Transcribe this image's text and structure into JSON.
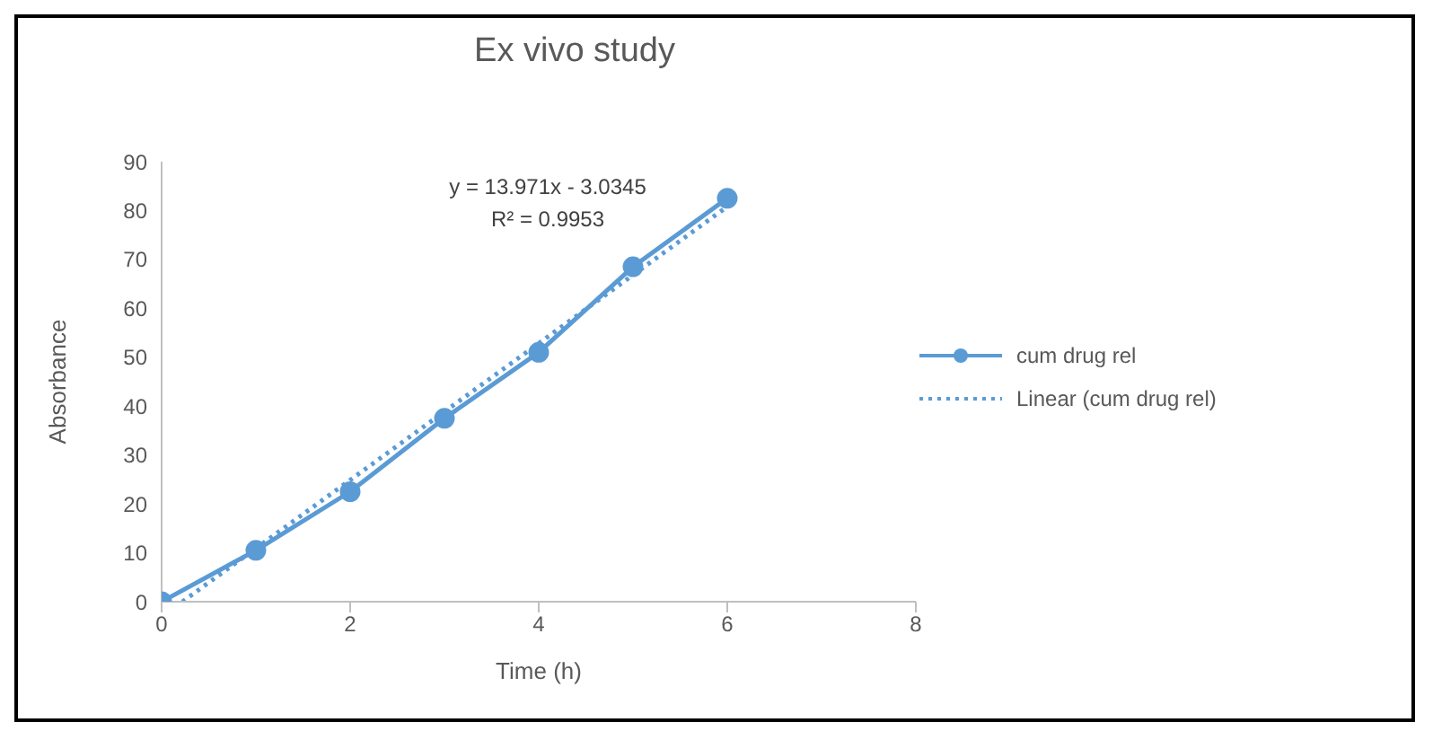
{
  "chart_data": {
    "type": "line",
    "title": "Ex vivo study",
    "xlabel": "Time (h)",
    "ylabel": "Absorbance",
    "xlim": [
      0,
      8
    ],
    "xticks": [
      0,
      2,
      4,
      6,
      8
    ],
    "ylim": [
      0,
      90
    ],
    "yticks": [
      0,
      10,
      20,
      30,
      40,
      50,
      60,
      70,
      80,
      90
    ],
    "grid": false,
    "legend": "right",
    "series": [
      {
        "name": "cum drug rel",
        "color": "#5b9bd5",
        "x": [
          0,
          1,
          2,
          3,
          4,
          5,
          6
        ],
        "values": [
          0,
          10.5,
          22.5,
          37.5,
          51,
          68.5,
          82.5
        ],
        "marker": "circle",
        "line_style": "solid"
      },
      {
        "name": "Linear (cum drug rel)",
        "color": "#5b9bd5",
        "x": [
          0.22,
          6
        ],
        "values": [
          0,
          80.8
        ],
        "marker": "none",
        "line_style": "dotted"
      }
    ],
    "annotations": [
      "y = 13.971x - 3.0345",
      "R² = 0.9953"
    ]
  }
}
